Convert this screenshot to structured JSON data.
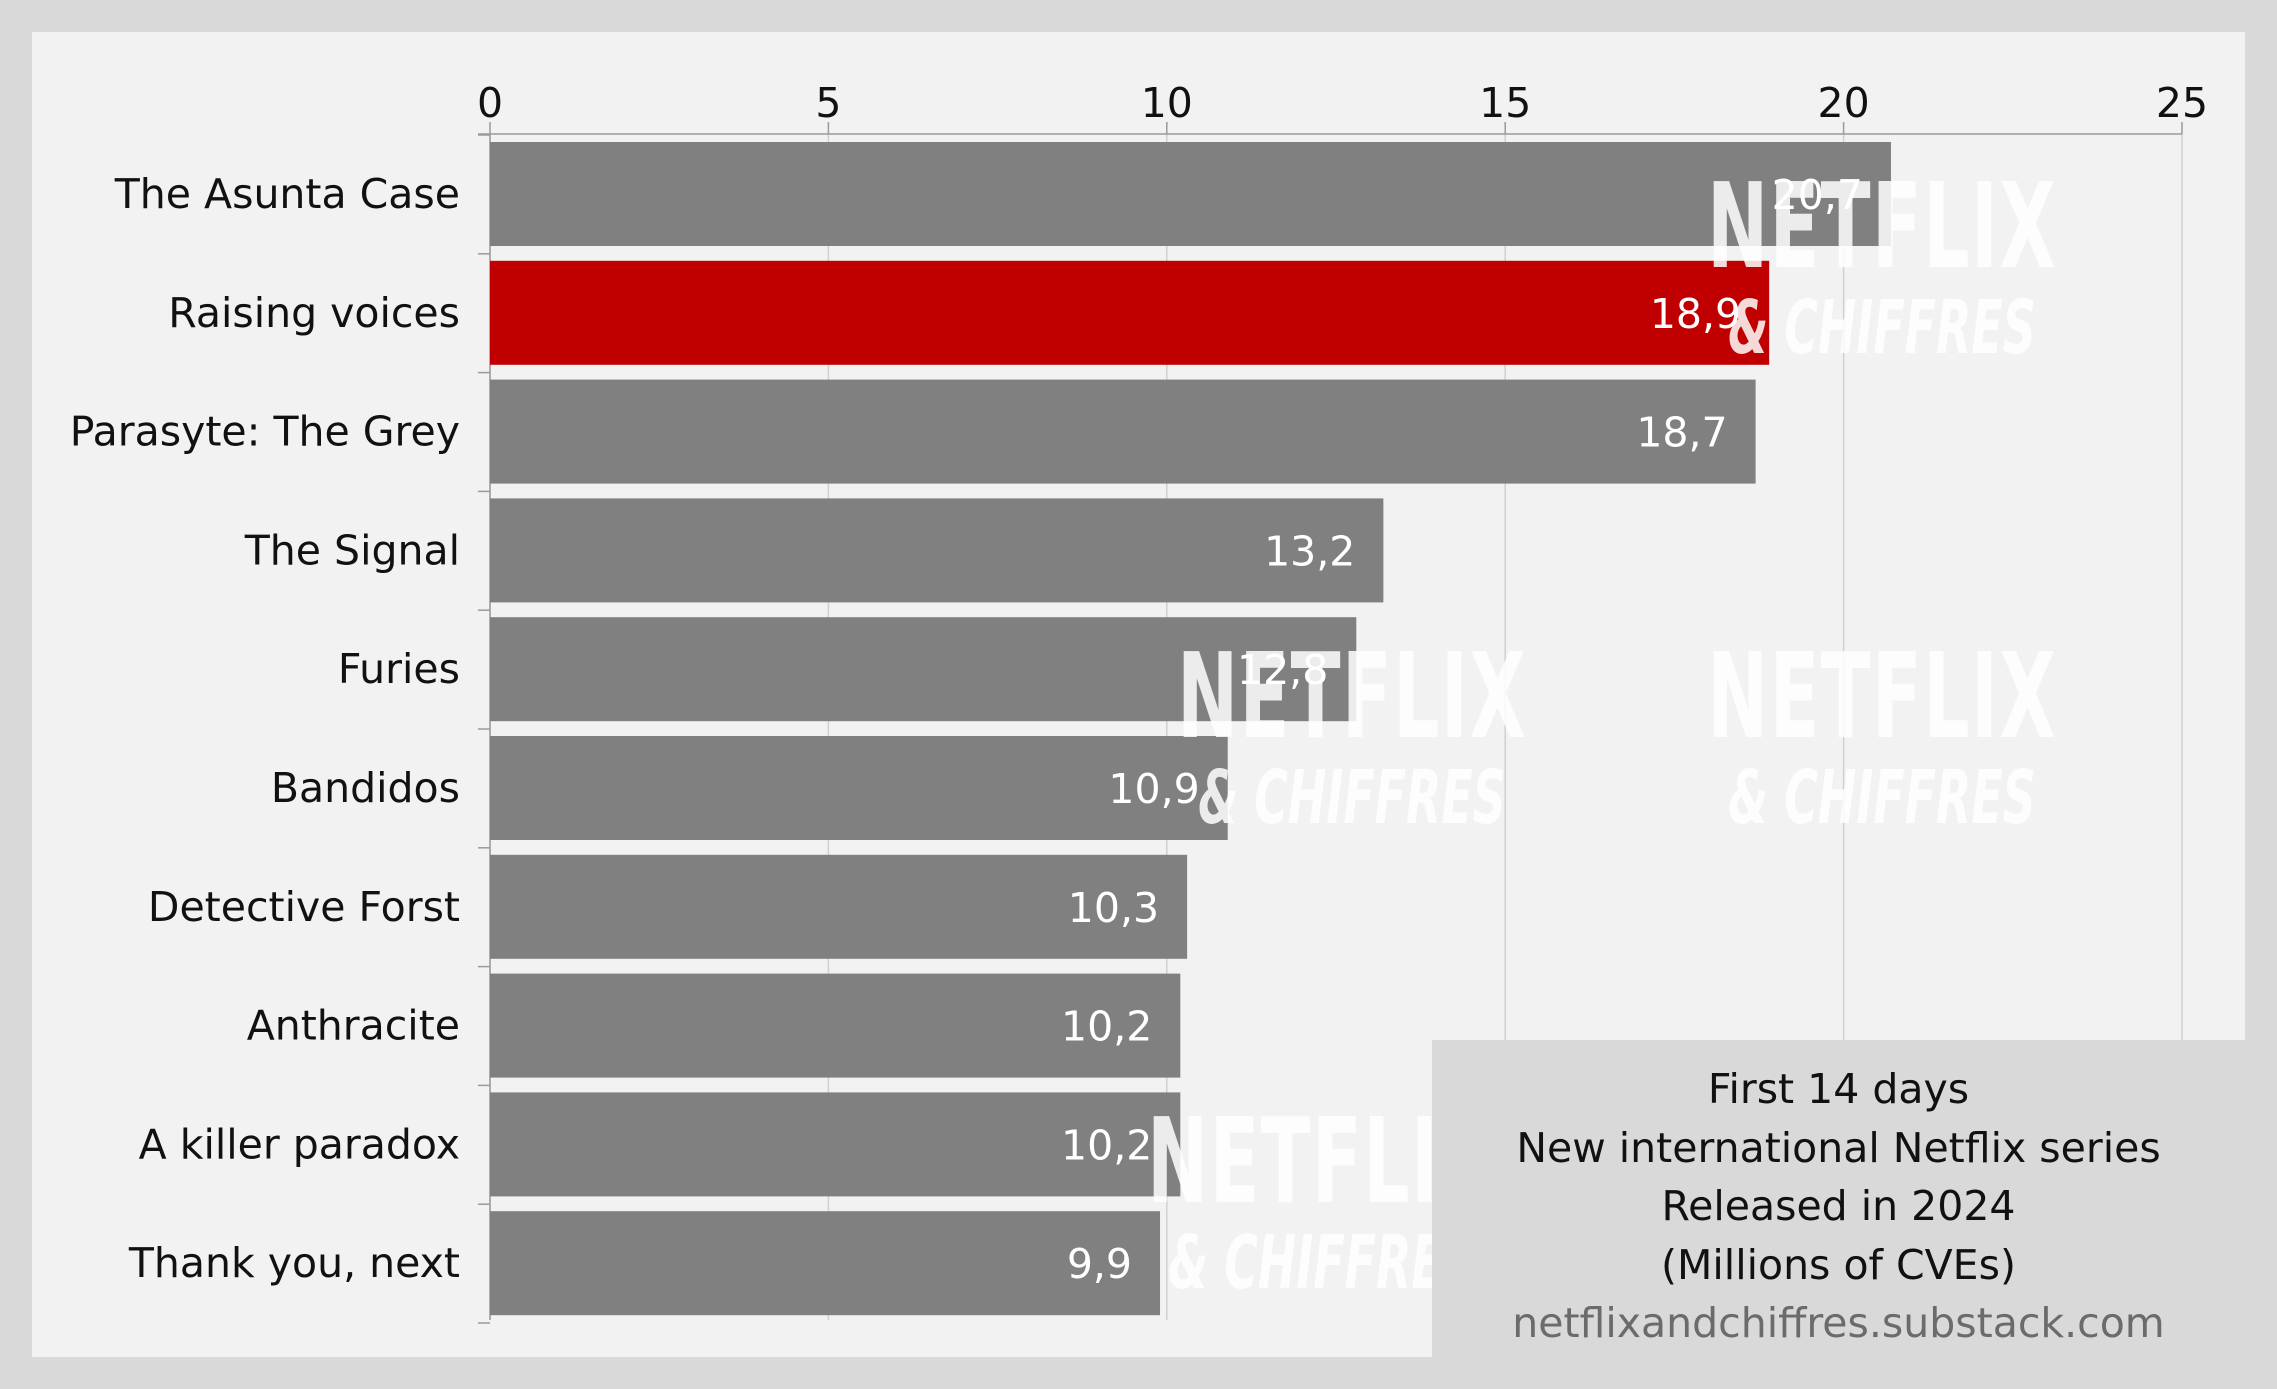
{
  "chart_data": {
    "type": "bar",
    "orientation": "horizontal",
    "categories": [
      "The Asunta Case",
      "Raising voices",
      "Parasyte: The Grey",
      "The Signal",
      "Furies",
      "Bandidos",
      "Detective Forst",
      "Anthracite",
      "A killer paradox",
      "Thank you, next"
    ],
    "values": [
      20.7,
      18.9,
      18.7,
      13.2,
      12.8,
      10.9,
      10.3,
      10.2,
      10.2,
      9.9
    ],
    "data_labels": [
      "20,7",
      "18,9",
      "18,7",
      "13,2",
      "12,8",
      "10,9",
      "10,3",
      "10,2",
      "10,2",
      "9,9"
    ],
    "highlighted_category": "Raising voices",
    "xlim": [
      0,
      25
    ],
    "x_ticks": [
      "0",
      "5",
      "10",
      "15",
      "20",
      "25"
    ],
    "x_axis_position": "top",
    "grid": true,
    "colors": {
      "bar": "#808080",
      "highlight": "#c00000",
      "label_text": "#ffffff",
      "grid": "#d0d0d0"
    }
  },
  "info_box": {
    "lines": [
      "First 14 days",
      "New international Netflix series",
      "Released in 2024",
      "(Millions of CVEs)"
    ],
    "url": "netflixandchiffres.substack.com"
  },
  "watermark": {
    "brand": "NETFLIX",
    "tagline": "& CHIFFRES"
  }
}
